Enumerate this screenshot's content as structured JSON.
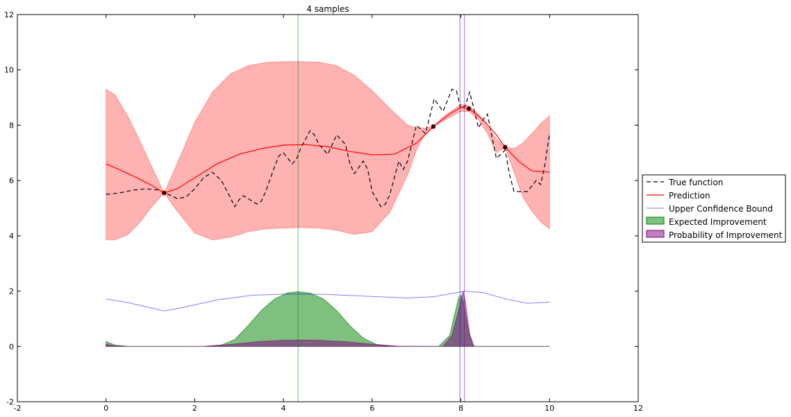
{
  "chart_data": {
    "type": "line",
    "title": "4 samples",
    "xlabel": "",
    "ylabel": "",
    "xlim": [
      -2,
      12
    ],
    "ylim": [
      -2,
      12
    ],
    "x_ticks": [
      -2,
      0,
      2,
      4,
      6,
      8,
      10,
      12
    ],
    "y_ticks": [
      -2,
      0,
      2,
      4,
      6,
      8,
      10,
      12
    ],
    "grid": false,
    "legend_position": "outside-right",
    "colors": {
      "true_function": "#000000",
      "prediction": "#ff0000",
      "confidence_band": "#ff0000",
      "ucb": "#0000ff",
      "ei": "#008000",
      "pi": "#800080"
    },
    "series": [
      {
        "name": "True function",
        "style": "dashed",
        "x": [
          0,
          0.3,
          0.6,
          0.9,
          1.2,
          1.4,
          1.6,
          1.8,
          2.0,
          2.2,
          2.4,
          2.6,
          2.8,
          2.9,
          3.0,
          3.1,
          3.2,
          3.4,
          3.5,
          3.6,
          3.8,
          3.9,
          4.0,
          4.2,
          4.3,
          4.4,
          4.6,
          4.7,
          4.8,
          5.0,
          5.1,
          5.2,
          5.4,
          5.5,
          5.6,
          5.8,
          5.9,
          6.0,
          6.2,
          6.3,
          6.4,
          6.6,
          6.7,
          6.8,
          7.0,
          7.2,
          7.4,
          7.6,
          7.8,
          7.9,
          8.0,
          8.1,
          8.2,
          8.4,
          8.5,
          8.6,
          8.8,
          9.0,
          9.1,
          9.2,
          9.4,
          9.5,
          9.7,
          9.8,
          9.9,
          10.0
        ],
        "y": [
          5.5,
          5.55,
          5.65,
          5.7,
          5.65,
          5.5,
          5.35,
          5.4,
          5.7,
          6.1,
          6.3,
          6.0,
          5.4,
          5.05,
          5.3,
          5.45,
          5.35,
          5.15,
          5.25,
          5.6,
          6.5,
          6.9,
          7.0,
          6.6,
          6.8,
          7.2,
          7.8,
          7.65,
          7.3,
          6.95,
          7.3,
          7.65,
          7.3,
          6.6,
          6.25,
          6.7,
          6.4,
          5.6,
          5.05,
          5.15,
          5.5,
          6.7,
          6.4,
          6.7,
          8.0,
          7.7,
          8.95,
          8.5,
          9.3,
          9.25,
          8.6,
          8.7,
          9.2,
          7.9,
          8.2,
          8.4,
          6.8,
          7.1,
          6.2,
          5.6,
          5.6,
          5.6,
          6.0,
          5.85,
          6.6,
          7.7
        ]
      },
      {
        "name": "Prediction",
        "style": "solid",
        "x": [
          0,
          0.5,
          1.0,
          1.31,
          1.6,
          2.0,
          2.5,
          3.0,
          3.5,
          4.0,
          4.5,
          5.0,
          5.5,
          6.0,
          6.5,
          7.0,
          7.38,
          7.7,
          8.0,
          8.18,
          8.5,
          8.8,
          9.0,
          9.3,
          9.6,
          10.0
        ],
        "y": [
          6.6,
          6.25,
          5.85,
          5.55,
          5.7,
          6.1,
          6.6,
          6.95,
          7.15,
          7.28,
          7.3,
          7.22,
          7.05,
          6.93,
          6.95,
          7.35,
          7.95,
          8.35,
          8.65,
          8.6,
          8.2,
          7.65,
          7.2,
          6.7,
          6.35,
          6.3
        ]
      },
      {
        "name": "Upper Confidence Bound",
        "style": "solid",
        "x": [
          0,
          0.5,
          1.0,
          1.31,
          1.7,
          2.5,
          3.3,
          4.2,
          5.0,
          5.8,
          6.8,
          7.4,
          8.1,
          8.5,
          9.0,
          9.5,
          10.0
        ],
        "y": [
          1.72,
          1.58,
          1.4,
          1.28,
          1.4,
          1.68,
          1.85,
          1.9,
          1.88,
          1.82,
          1.75,
          1.8,
          2.0,
          1.95,
          1.72,
          1.56,
          1.6
        ]
      }
    ],
    "confidence_band": {
      "x": [
        0,
        0.2,
        0.5,
        0.8,
        1.0,
        1.31,
        1.6,
        2.0,
        2.4,
        2.8,
        3.2,
        3.6,
        4.0,
        4.4,
        4.8,
        5.2,
        5.6,
        6.0,
        6.4,
        6.8,
        7.0,
        7.2,
        7.38,
        7.6,
        8.0,
        8.18,
        8.4,
        8.6,
        8.8,
        9.0,
        9.2,
        9.4,
        9.6,
        9.8,
        10.0
      ],
      "upper": [
        9.3,
        9.1,
        8.3,
        7.3,
        6.6,
        5.55,
        6.6,
        8.1,
        9.2,
        9.85,
        10.15,
        10.27,
        10.3,
        10.3,
        10.28,
        10.15,
        9.8,
        9.25,
        8.6,
        8.0,
        7.9,
        7.9,
        7.95,
        8.3,
        8.75,
        8.7,
        8.4,
        7.95,
        7.5,
        7.2,
        7.15,
        7.35,
        7.7,
        8.05,
        8.35
      ],
      "lower": [
        3.85,
        3.85,
        4.05,
        4.55,
        5.0,
        5.55,
        4.9,
        4.1,
        3.85,
        3.95,
        4.15,
        4.25,
        4.28,
        4.3,
        4.28,
        4.2,
        4.05,
        4.15,
        4.85,
        6.2,
        7.1,
        7.7,
        7.95,
        8.15,
        8.5,
        8.5,
        8.2,
        7.7,
        7.0,
        7.2,
        6.3,
        5.4,
        4.9,
        4.5,
        4.25
      ]
    },
    "areas": [
      {
        "name": "Expected Improvement",
        "x": [
          0,
          0.2,
          0.5,
          2.2,
          2.6,
          2.9,
          3.2,
          3.5,
          3.8,
          4.1,
          4.33,
          4.6,
          4.9,
          5.2,
          5.5,
          5.8,
          6.1,
          6.4,
          6.7,
          7.5,
          7.75,
          7.85,
          7.95,
          8.0,
          8.05,
          8.15,
          8.25,
          8.3,
          10.0
        ],
        "y": [
          0.18,
          0.05,
          0.0,
          0.0,
          0.05,
          0.25,
          0.75,
          1.3,
          1.72,
          1.94,
          1.98,
          1.93,
          1.72,
          1.3,
          0.75,
          0.3,
          0.07,
          0.01,
          0.0,
          0.0,
          0.4,
          1.1,
          1.75,
          1.85,
          1.65,
          0.75,
          0.1,
          0.0,
          0.0
        ]
      },
      {
        "name": "Probability of Improvement",
        "x": [
          0,
          0.2,
          0.5,
          2.2,
          2.8,
          3.4,
          4.0,
          4.4,
          4.8,
          5.4,
          6.0,
          6.6,
          7.6,
          7.8,
          7.95,
          8.05,
          8.1,
          8.2,
          8.3,
          10.0
        ],
        "y": [
          0.08,
          0.02,
          0.0,
          0.0,
          0.07,
          0.17,
          0.22,
          0.23,
          0.22,
          0.17,
          0.08,
          0.01,
          0.0,
          0.4,
          1.3,
          2.0,
          1.65,
          0.45,
          0.0,
          0.0
        ]
      }
    ],
    "samples": {
      "x": [
        1.31,
        7.38,
        8.18,
        9.0
      ],
      "y": [
        5.55,
        7.95,
        8.6,
        7.2
      ]
    },
    "vlines": [
      {
        "series": "Expected Improvement",
        "x": 4.33
      },
      {
        "series": "Upper Confidence Bound",
        "x": 7.98
      },
      {
        "series": "Probability of Improvement",
        "x": 8.08
      }
    ],
    "legend": [
      "True function",
      "Prediction",
      "Upper Confidence Bound",
      "Expected Improvement",
      "Probability of Improvement"
    ]
  }
}
